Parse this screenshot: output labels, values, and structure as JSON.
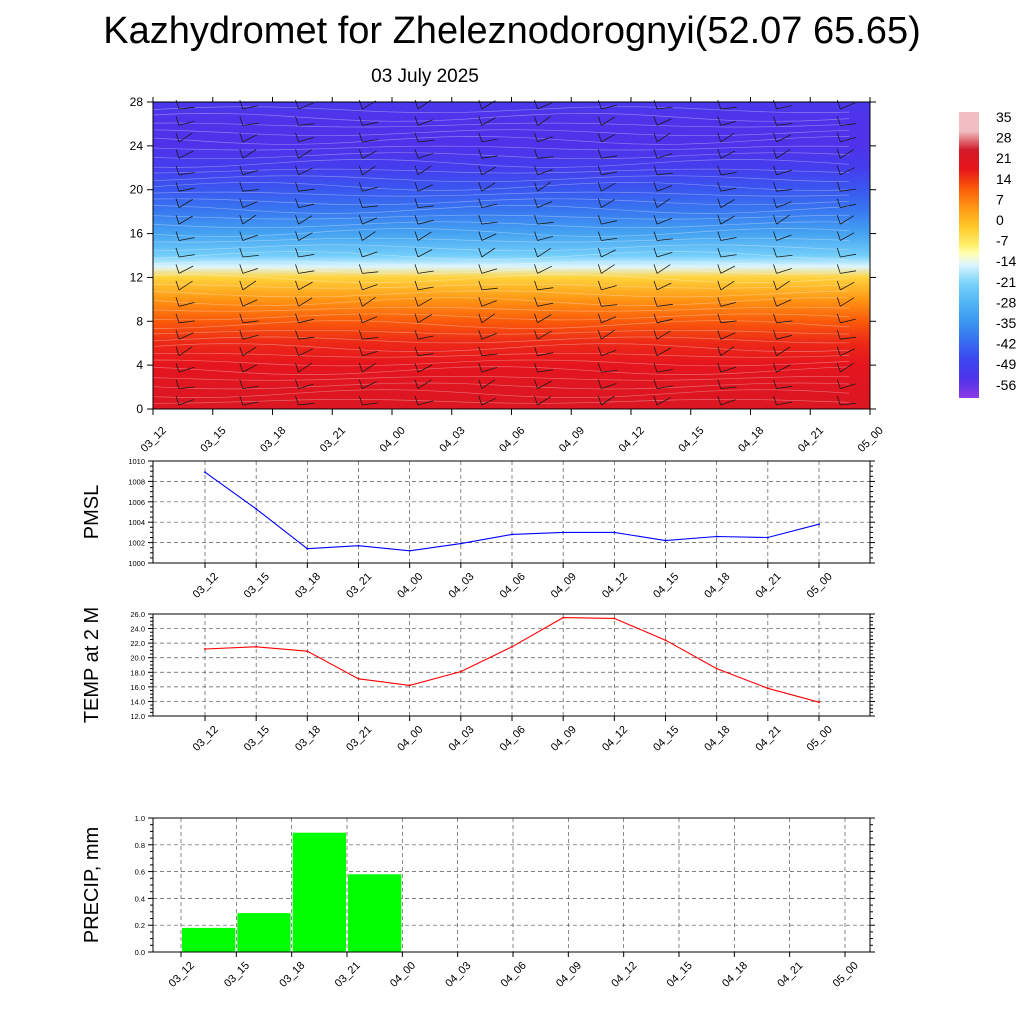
{
  "title": "Kazhydromet for Zheleznodorognyi(52.07 65.65)",
  "date": "03 July 2025",
  "time_labels": [
    "03_12",
    "03_15",
    "03_18",
    "03_21",
    "04_00",
    "04_03",
    "04_06",
    "04_09",
    "04_12",
    "04_15",
    "04_18",
    "04_21",
    "05_00"
  ],
  "chart_data": [
    {
      "type": "heatmap",
      "title": "",
      "xlabel": "",
      "ylabel": "",
      "x": [
        "03_12",
        "03_15",
        "03_18",
        "03_21",
        "04_00",
        "04_03",
        "04_06",
        "04_09",
        "04_12",
        "04_15",
        "04_18",
        "04_21",
        "05_00"
      ],
      "y_ticks": [
        0,
        4,
        8,
        12,
        16,
        20,
        24,
        28
      ],
      "ylim": [
        0,
        28
      ],
      "colorbar_ticks": [
        35,
        28,
        21,
        14,
        7,
        0,
        -7,
        -14,
        -21,
        -28,
        -35,
        -42,
        -49,
        -56
      ],
      "overlay": "wind barbs",
      "profile": [
        {
          "y": 0,
          "value": 25
        },
        {
          "y": 2,
          "value": 24
        },
        {
          "y": 4,
          "value": 22
        },
        {
          "y": 6,
          "value": 19
        },
        {
          "y": 8,
          "value": 14
        },
        {
          "y": 10,
          "value": 7
        },
        {
          "y": 12,
          "value": -2
        },
        {
          "y": 13,
          "value": -14
        },
        {
          "y": 14,
          "value": -22
        },
        {
          "y": 16,
          "value": -32
        },
        {
          "y": 18,
          "value": -40
        },
        {
          "y": 20,
          "value": -46
        },
        {
          "y": 22,
          "value": -52
        },
        {
          "y": 24,
          "value": -56
        },
        {
          "y": 26,
          "value": -56
        },
        {
          "y": 28,
          "value": -54
        }
      ],
      "colors": {
        "warm": "#e8141c",
        "neutral": "#ffffc0",
        "cold": "#4b3ef0"
      }
    },
    {
      "type": "line",
      "ylabel": "PMSL",
      "x": [
        "03_12",
        "03_15",
        "03_18",
        "03_21",
        "04_00",
        "04_03",
        "04_06",
        "04_09",
        "04_12",
        "04_15",
        "04_18",
        "04_21",
        "05_00"
      ],
      "series": [
        {
          "values": [
            1008.9,
            1005.3,
            1001.4,
            1001.7,
            1001.2,
            1001.9,
            1002.8,
            1003.0,
            1003.0,
            1002.2,
            1002.6,
            1002.5,
            1003.8
          ],
          "color": "#0000ff"
        }
      ],
      "ylim": [
        1000,
        1010
      ],
      "y_ticks": [
        1000,
        1002,
        1004,
        1006,
        1008,
        1010
      ],
      "y_tick_labels": [
        "1000",
        "1002",
        "1004",
        "1006",
        "1008",
        "1010"
      ],
      "grid": true
    },
    {
      "type": "line",
      "ylabel": "TEMP at 2 M",
      "x": [
        "03_12",
        "03_15",
        "03_18",
        "03_21",
        "04_00",
        "04_03",
        "04_06",
        "04_09",
        "04_12",
        "04_15",
        "04_18",
        "04_21",
        "05_00"
      ],
      "series": [
        {
          "values": [
            21.2,
            21.5,
            20.9,
            17.1,
            16.2,
            18.1,
            21.5,
            25.5,
            25.4,
            22.4,
            18.5,
            15.8,
            13.9
          ],
          "color": "#ff0000"
        }
      ],
      "ylim": [
        12,
        26
      ],
      "y_ticks": [
        12,
        14,
        16,
        18,
        20,
        22,
        24,
        26
      ],
      "y_tick_labels": [
        "12.0",
        "14.0",
        "16.0",
        "18.0",
        "20.0",
        "22.0",
        "24.0",
        "26.0"
      ],
      "grid": true
    },
    {
      "type": "bar",
      "ylabel": "PRECIP, mm",
      "categories": [
        "03_12",
        "03_15",
        "03_18",
        "03_21",
        "04_00",
        "04_03",
        "04_06",
        "04_09",
        "04_12",
        "04_15",
        "04_18",
        "04_21",
        "05_00"
      ],
      "values": [
        0,
        0.18,
        0.29,
        0.89,
        0.58,
        0,
        0,
        0,
        0,
        0,
        0,
        0,
        0
      ],
      "color": "#00ff00",
      "ylim": [
        0,
        1
      ],
      "y_ticks": [
        0,
        0.2,
        0.4,
        0.6,
        0.8,
        1.0
      ],
      "y_tick_labels": [
        "0.0",
        "0.2",
        "0.4",
        "0.6",
        "0.8",
        "1.0"
      ],
      "grid": true
    }
  ]
}
